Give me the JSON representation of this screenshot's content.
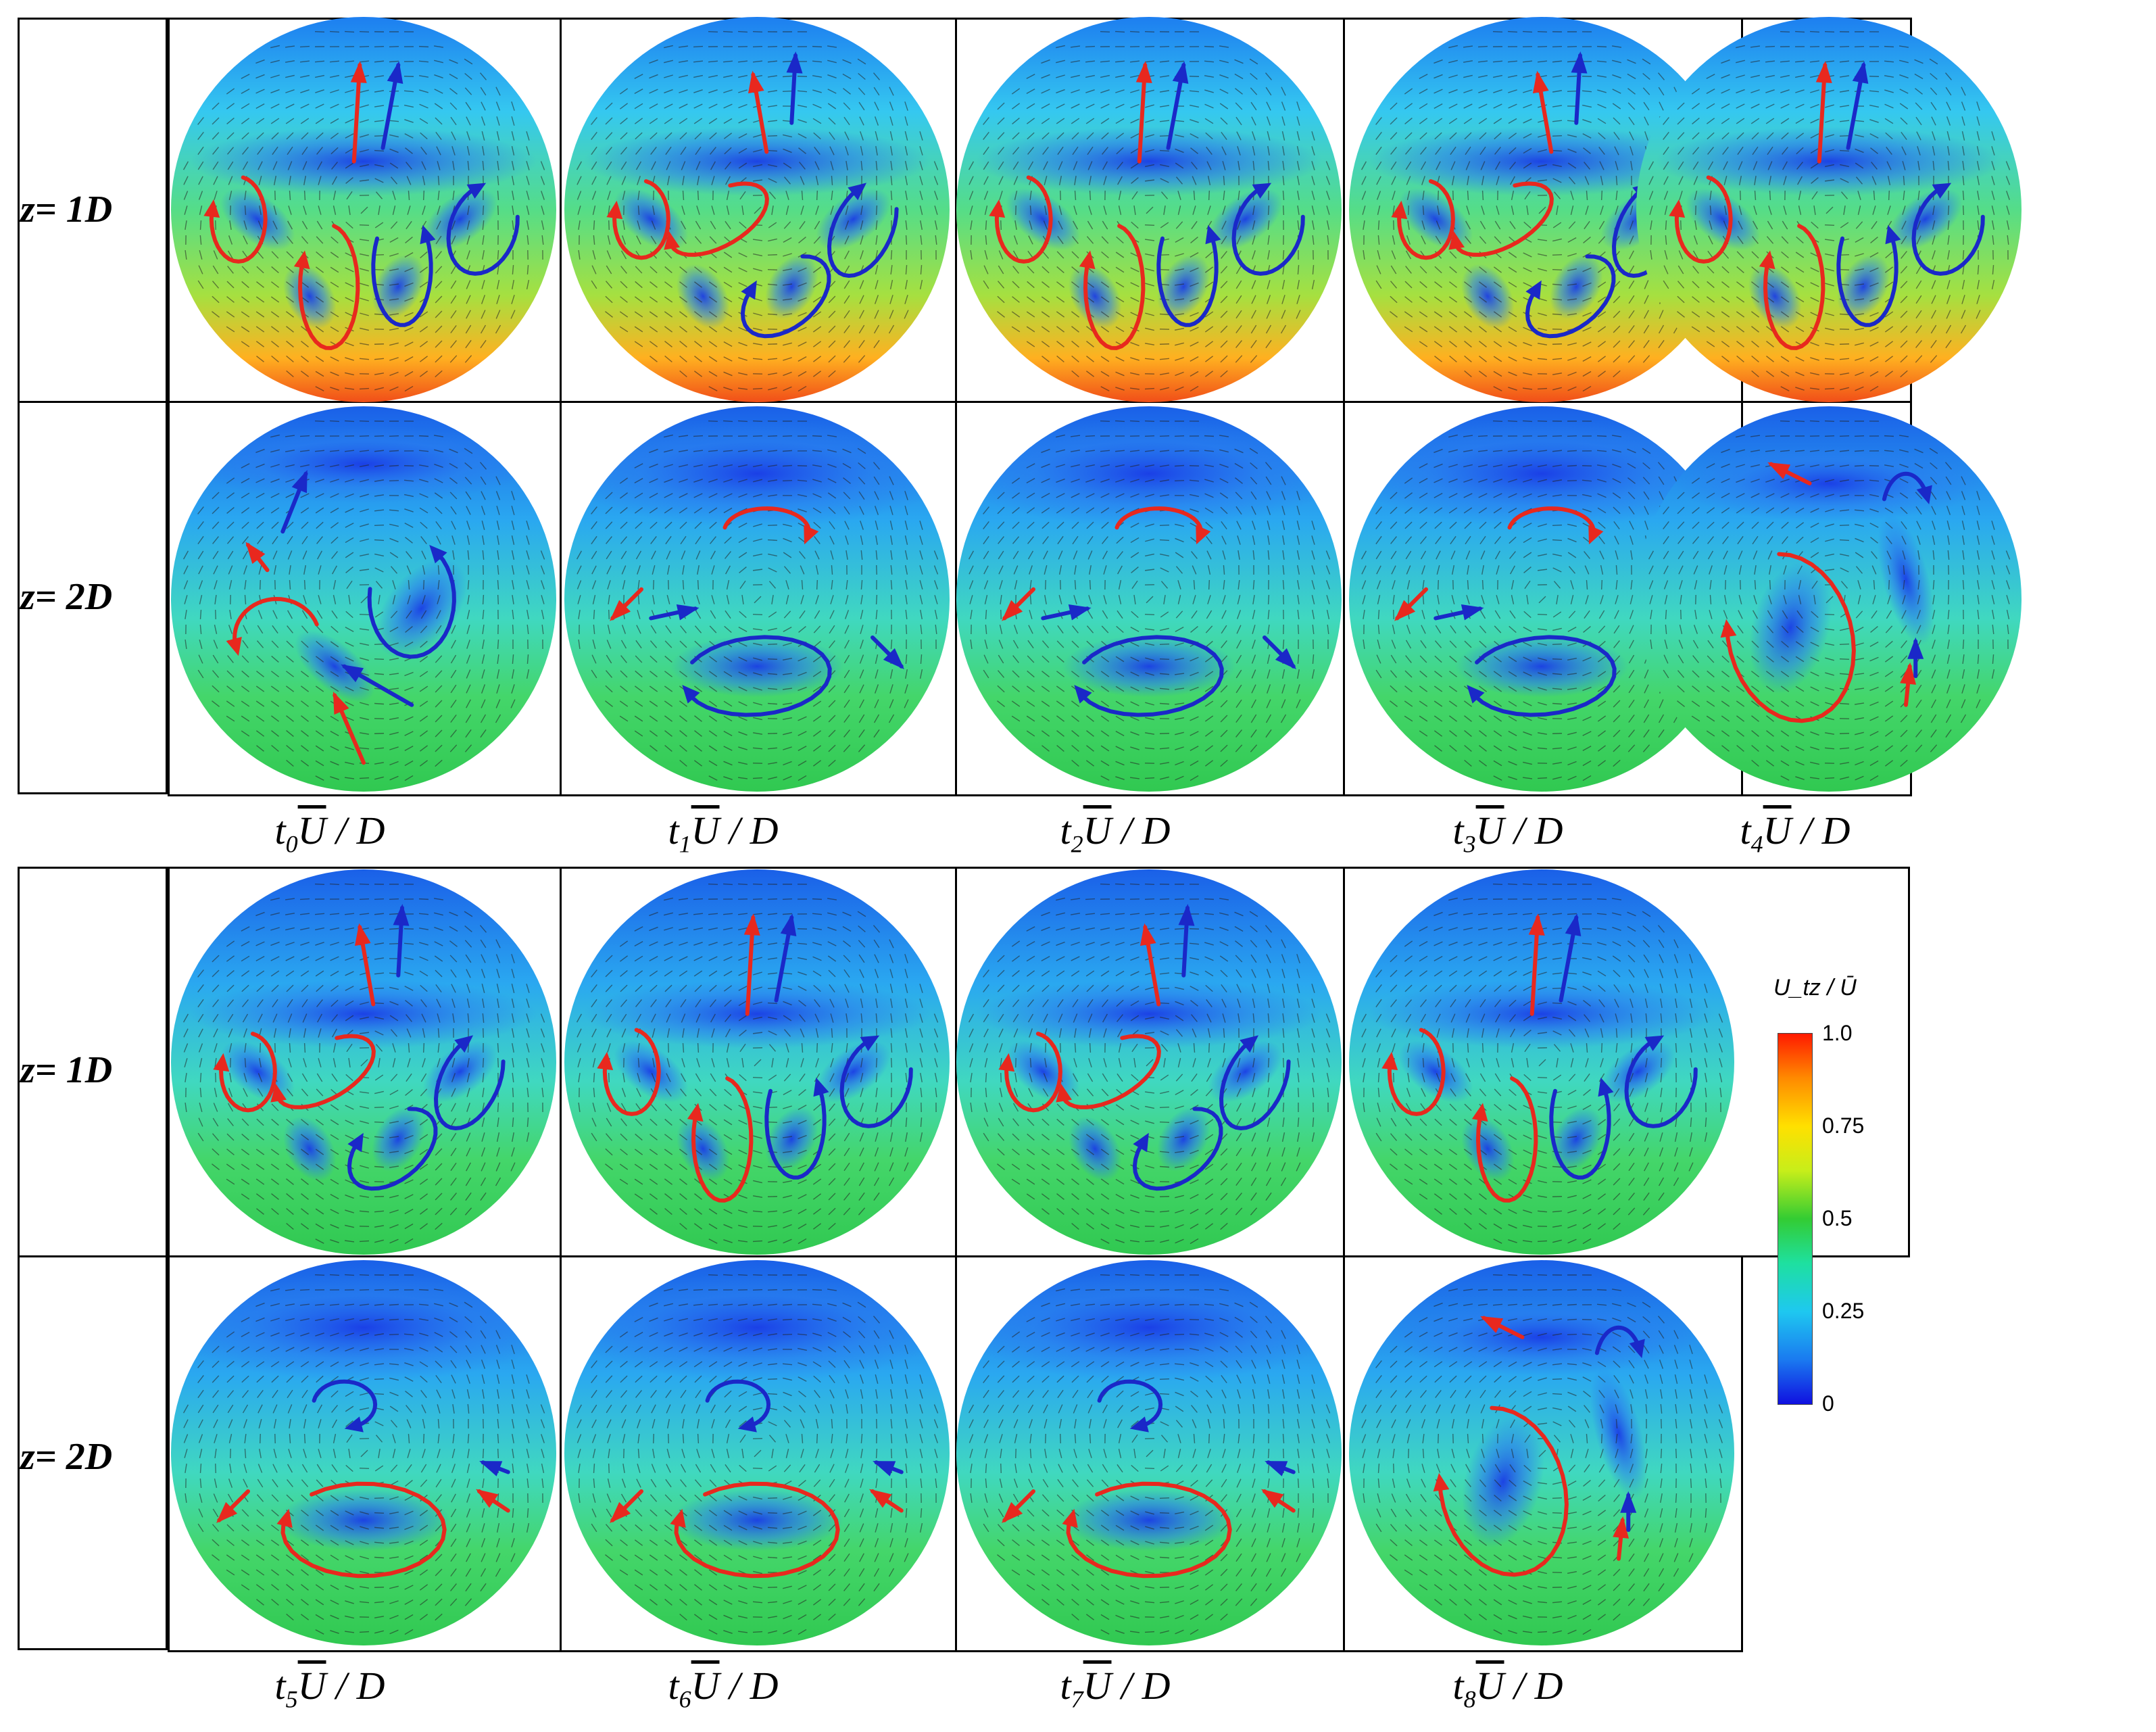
{
  "rows": [
    "z= 1D",
    "z= 2D"
  ],
  "time_labels": [
    {
      "sub": "0"
    },
    {
      "sub": "1"
    },
    {
      "sub": "2"
    },
    {
      "sub": "3"
    },
    {
      "sub": "4"
    },
    {
      "sub": "5"
    },
    {
      "sub": "6"
    },
    {
      "sub": "7"
    },
    {
      "sub": "8"
    }
  ],
  "time_label_parts": {
    "t": "t",
    "u": "U",
    "rest": " / D"
  },
  "colorbar": {
    "title": "U_tz / Ū",
    "ticks": [
      "1.0",
      "0.75",
      "0.5",
      "0.25",
      "0"
    ],
    "colors": [
      "#ff1a00",
      "#ffe000",
      "#33cc33",
      "#1ec8f0",
      "#1010e0"
    ]
  },
  "colors": {
    "red_vortex": "#e8281e",
    "blue_vortex": "#1a28c8",
    "border": "#000000"
  }
}
